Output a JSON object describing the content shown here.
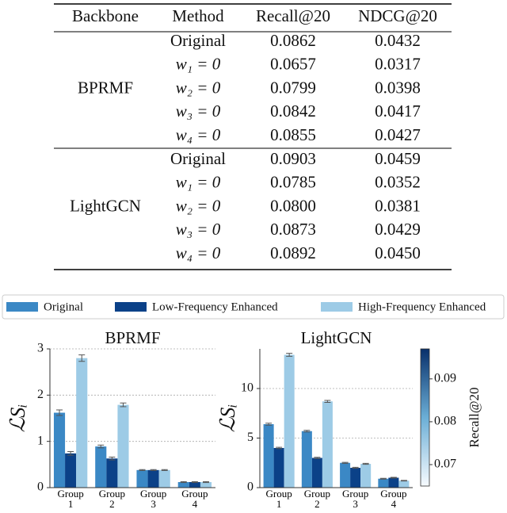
{
  "table": {
    "header": [
      "Backbone",
      "Method",
      "Recall@20",
      "NDCG@20"
    ],
    "groups": [
      {
        "backbone": "BPRMF",
        "rows": [
          [
            "Original",
            "0.0862",
            "0.0432"
          ],
          [
            "w₁ = 0",
            "0.0657",
            "0.0317"
          ],
          [
            "w₂ = 0",
            "0.0799",
            "0.0398"
          ],
          [
            "w₃ = 0",
            "0.0842",
            "0.0417"
          ],
          [
            "w₄ = 0",
            "0.0855",
            "0.0427"
          ]
        ]
      },
      {
        "backbone": "LightGCN",
        "rows": [
          [
            "Original",
            "0.0903",
            "0.0459"
          ],
          [
            "w₁ = 0",
            "0.0785",
            "0.0352"
          ],
          [
            "w₂ = 0",
            "0.0800",
            "0.0381"
          ],
          [
            "w₃ = 0",
            "0.0873",
            "0.0429"
          ],
          [
            "w₄ = 0",
            "0.0892",
            "0.0450"
          ]
        ]
      }
    ]
  },
  "chart_data": [
    {
      "type": "bar",
      "title": "BPRMF",
      "y_label": "ℒSᵢ",
      "categories": [
        "Group 1",
        "Group 2",
        "Group 3",
        "Group 4"
      ],
      "series": [
        {
          "name": "Original",
          "color": "#3b88c5",
          "values": [
            1.62,
            0.89,
            0.38,
            0.12
          ],
          "errors": [
            0.06,
            0.03,
            0.01,
            0.01
          ]
        },
        {
          "name": "Low-Frequency Enhanced",
          "color": "#0b4188",
          "values": [
            0.74,
            0.63,
            0.38,
            0.12
          ],
          "errors": [
            0.04,
            0.03,
            0.01,
            0.01
          ]
        },
        {
          "name": "High-Frequency Enhanced",
          "color": "#9dcbe6",
          "values": [
            2.8,
            1.79,
            0.38,
            0.12
          ],
          "errors": [
            0.07,
            0.04,
            0.01,
            0.01
          ]
        }
      ],
      "ylim": [
        0,
        3
      ],
      "yticks": [
        0,
        1,
        2,
        3
      ],
      "grid": true
    },
    {
      "type": "bar",
      "title": "LightGCN",
      "y_label": "ℒSᵢ",
      "categories": [
        "Group 1",
        "Group 2",
        "Group 3",
        "Group 4"
      ],
      "series": [
        {
          "color": "#3b88c5",
          "values": [
            6.4,
            5.7,
            2.5,
            0.9
          ],
          "errors": [
            0.1,
            0.08,
            0.05,
            0.04
          ]
        },
        {
          "color": "#0b4188",
          "values": [
            4.0,
            3.0,
            2.0,
            1.0
          ],
          "errors": [
            0.07,
            0.06,
            0.05,
            0.04
          ]
        },
        {
          "color": "#9dcbe6",
          "values": [
            13.4,
            8.7,
            2.4,
            0.7
          ],
          "errors": [
            0.15,
            0.1,
            0.05,
            0.03
          ]
        }
      ],
      "ylim": [
        0,
        14
      ],
      "yticks": [
        0,
        5,
        10
      ],
      "grid": true,
      "colorbar": {
        "label": "Recall@20",
        "lim": [
          0.065,
          0.097
        ],
        "ticks": [
          0.07,
          0.08,
          0.09
        ],
        "colormap": [
          "#f7fbff",
          "#6baed6",
          "#08306b"
        ]
      }
    }
  ]
}
